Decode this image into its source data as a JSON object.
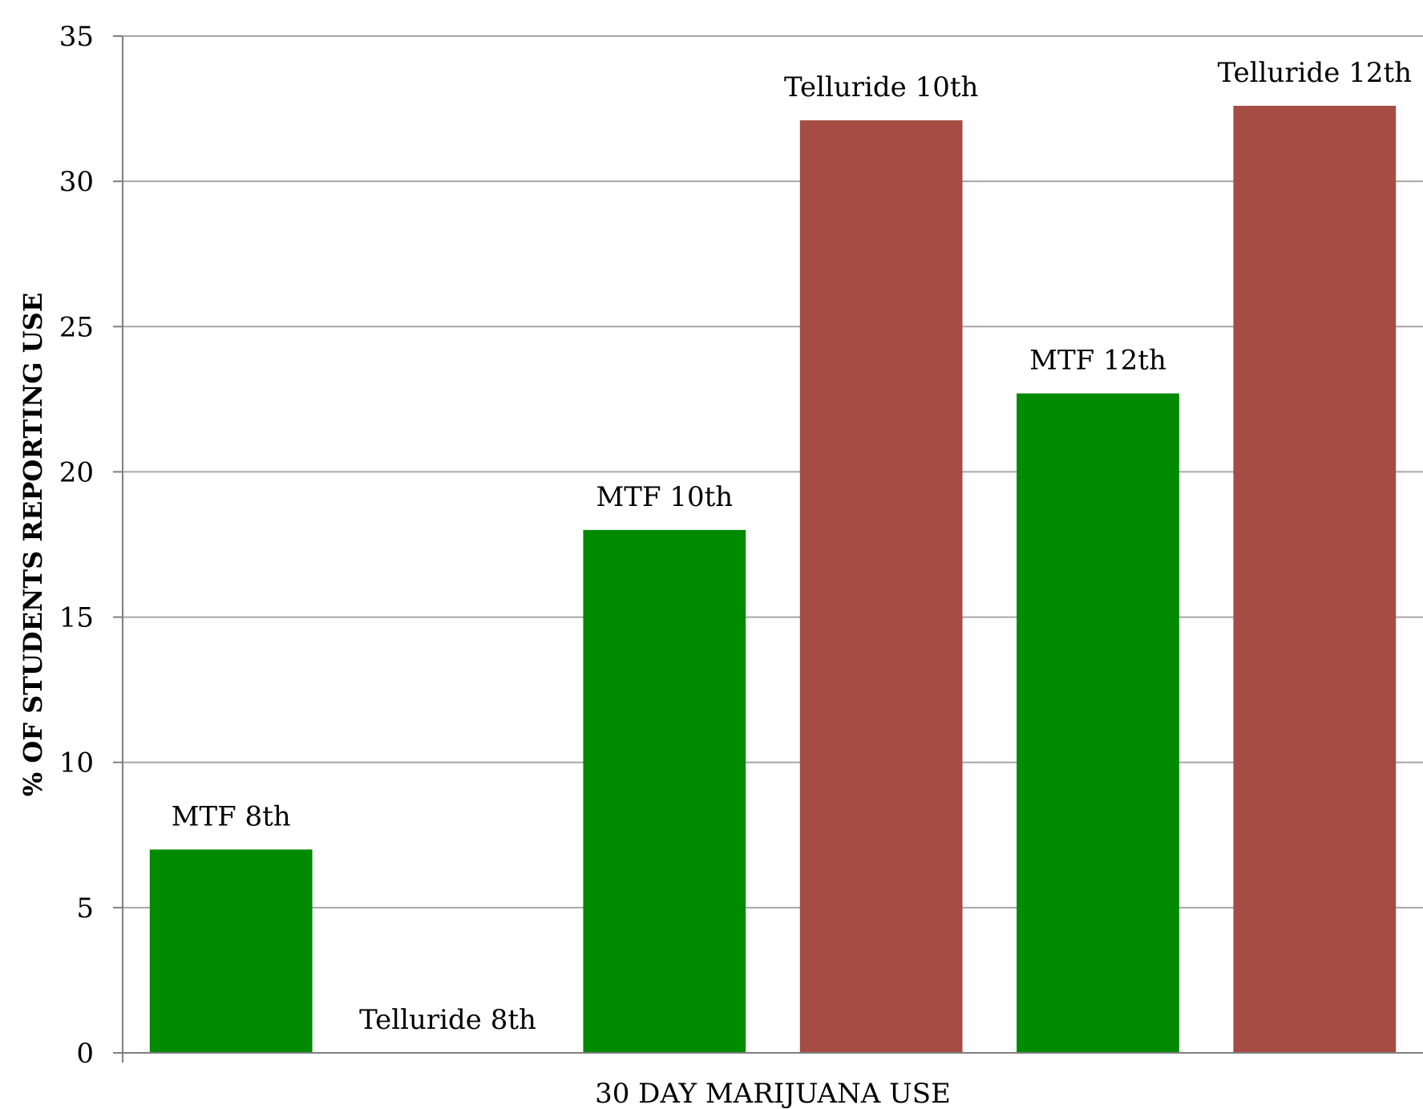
{
  "chart_data": {
    "type": "bar",
    "title": "",
    "xlabel": "30 DAY MARIJUANA USE",
    "ylabel": "% OF STUDENTS REPORTING USE",
    "ylim": [
      0,
      35
    ],
    "yticks": [
      0,
      5,
      10,
      15,
      20,
      25,
      30,
      35
    ],
    "grid": true,
    "legend": "none",
    "bars": [
      {
        "label": "MTF 8th",
        "value": 7.0,
        "color": "#008a00"
      },
      {
        "label": "Telluride 8th",
        "value": 0,
        "color": "#a54c45"
      },
      {
        "label": "MTF 10th",
        "value": 18.0,
        "color": "#008a00"
      },
      {
        "label": "Telluride 10th",
        "value": 32.1,
        "color": "#a54c45"
      },
      {
        "label": "MTF 12th",
        "value": 22.7,
        "color": "#008a00"
      },
      {
        "label": "Telluride 12th",
        "value": 32.6,
        "color": "#a54c45"
      }
    ]
  }
}
